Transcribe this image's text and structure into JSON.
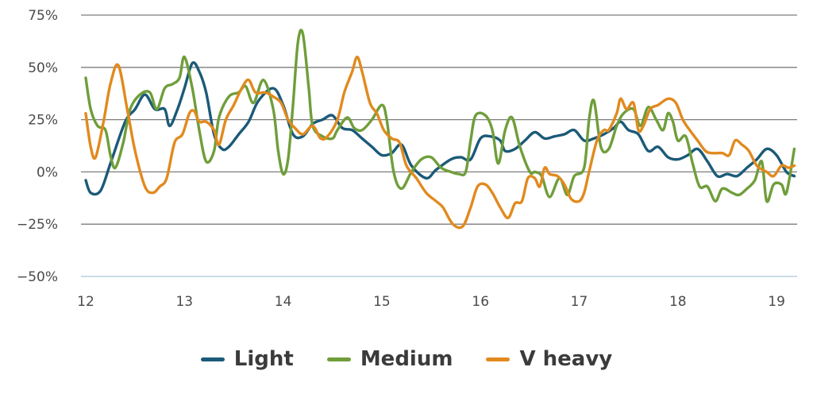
{
  "chart_data": {
    "type": "line",
    "title": "",
    "xlabel": "",
    "ylabel": "",
    "xlim": [
      12,
      19.2
    ],
    "ylim": [
      -50,
      75
    ],
    "x_ticks": [
      12,
      13,
      14,
      15,
      16,
      17,
      18,
      19
    ],
    "x_tick_labels": [
      "12",
      "13",
      "14",
      "15",
      "16",
      "17",
      "18",
      "19"
    ],
    "y_ticks": [
      -50,
      -25,
      0,
      25,
      50,
      75
    ],
    "y_tick_labels": [
      "−50%",
      "−25%",
      "0%",
      "25%",
      "50%",
      "75%"
    ],
    "grid": "horizontal",
    "legend_position": "bottom-center",
    "series": [
      {
        "name": "Light",
        "color": "#1b5a78",
        "points": [
          [
            12.0,
            -4
          ],
          [
            12.05,
            -10
          ],
          [
            12.15,
            -9
          ],
          [
            12.25,
            4
          ],
          [
            12.4,
            24
          ],
          [
            12.5,
            30
          ],
          [
            12.6,
            37
          ],
          [
            12.7,
            30
          ],
          [
            12.8,
            30
          ],
          [
            12.85,
            22
          ],
          [
            12.93,
            30
          ],
          [
            13.0,
            40
          ],
          [
            13.08,
            52
          ],
          [
            13.15,
            48
          ],
          [
            13.22,
            38
          ],
          [
            13.3,
            18
          ],
          [
            13.38,
            11
          ],
          [
            13.45,
            12
          ],
          [
            13.55,
            18
          ],
          [
            13.65,
            24
          ],
          [
            13.75,
            34
          ],
          [
            13.9,
            40
          ],
          [
            14.0,
            32
          ],
          [
            14.1,
            18
          ],
          [
            14.2,
            17
          ],
          [
            14.3,
            23
          ],
          [
            14.4,
            25
          ],
          [
            14.5,
            27
          ],
          [
            14.6,
            21
          ],
          [
            14.7,
            20
          ],
          [
            14.8,
            16
          ],
          [
            14.9,
            12
          ],
          [
            15.0,
            8
          ],
          [
            15.1,
            9
          ],
          [
            15.2,
            13
          ],
          [
            15.3,
            3
          ],
          [
            15.45,
            -3
          ],
          [
            15.55,
            1
          ],
          [
            15.7,
            6
          ],
          [
            15.8,
            7
          ],
          [
            15.9,
            6
          ],
          [
            16.0,
            16
          ],
          [
            16.1,
            17
          ],
          [
            16.2,
            15
          ],
          [
            16.25,
            10
          ],
          [
            16.35,
            11
          ],
          [
            16.45,
            15
          ],
          [
            16.55,
            19
          ],
          [
            16.65,
            16
          ],
          [
            16.75,
            17
          ],
          [
            16.85,
            18
          ],
          [
            16.95,
            20
          ],
          [
            17.05,
            15
          ],
          [
            17.15,
            16
          ],
          [
            17.25,
            18
          ],
          [
            17.35,
            21
          ],
          [
            17.42,
            24
          ],
          [
            17.5,
            20
          ],
          [
            17.6,
            18
          ],
          [
            17.7,
            10
          ],
          [
            17.8,
            12
          ],
          [
            17.9,
            7
          ],
          [
            18.0,
            6
          ],
          [
            18.1,
            8
          ],
          [
            18.2,
            11
          ],
          [
            18.3,
            5
          ],
          [
            18.4,
            -2
          ],
          [
            18.5,
            -1
          ],
          [
            18.6,
            -2
          ],
          [
            18.7,
            2
          ],
          [
            18.8,
            6
          ],
          [
            18.9,
            11
          ],
          [
            19.0,
            8
          ],
          [
            19.1,
            0
          ],
          [
            19.18,
            -2
          ]
        ]
      },
      {
        "name": "Medium",
        "color": "#6f9e3a",
        "points": [
          [
            12.0,
            45
          ],
          [
            12.05,
            30
          ],
          [
            12.12,
            22
          ],
          [
            12.2,
            20
          ],
          [
            12.25,
            8
          ],
          [
            12.3,
            2
          ],
          [
            12.38,
            14
          ],
          [
            12.45,
            30
          ],
          [
            12.55,
            37
          ],
          [
            12.65,
            38
          ],
          [
            12.72,
            30
          ],
          [
            12.8,
            40
          ],
          [
            12.88,
            42
          ],
          [
            12.95,
            45
          ],
          [
            13.0,
            55
          ],
          [
            13.08,
            40
          ],
          [
            13.15,
            20
          ],
          [
            13.22,
            5
          ],
          [
            13.3,
            10
          ],
          [
            13.35,
            26
          ],
          [
            13.45,
            36
          ],
          [
            13.55,
            38
          ],
          [
            13.62,
            41
          ],
          [
            13.7,
            33
          ],
          [
            13.8,
            44
          ],
          [
            13.9,
            30
          ],
          [
            13.95,
            10
          ],
          [
            14.0,
            -1
          ],
          [
            14.05,
            6
          ],
          [
            14.1,
            32
          ],
          [
            14.15,
            62
          ],
          [
            14.2,
            66
          ],
          [
            14.26,
            40
          ],
          [
            14.3,
            22
          ],
          [
            14.4,
            17
          ],
          [
            14.5,
            16
          ],
          [
            14.55,
            20
          ],
          [
            14.65,
            26
          ],
          [
            14.72,
            21
          ],
          [
            14.8,
            20
          ],
          [
            14.9,
            25
          ],
          [
            15.0,
            32
          ],
          [
            15.05,
            25
          ],
          [
            15.12,
            0
          ],
          [
            15.2,
            -8
          ],
          [
            15.3,
            0
          ],
          [
            15.4,
            6
          ],
          [
            15.5,
            7
          ],
          [
            15.6,
            2
          ],
          [
            15.7,
            0
          ],
          [
            15.78,
            -1
          ],
          [
            15.85,
            0
          ],
          [
            15.9,
            15
          ],
          [
            15.95,
            27
          ],
          [
            16.05,
            27
          ],
          [
            16.12,
            20
          ],
          [
            16.18,
            4
          ],
          [
            16.25,
            20
          ],
          [
            16.32,
            26
          ],
          [
            16.4,
            12
          ],
          [
            16.5,
            0
          ],
          [
            16.55,
            0
          ],
          [
            16.62,
            -2
          ],
          [
            16.7,
            -12
          ],
          [
            16.8,
            -3
          ],
          [
            16.88,
            -11
          ],
          [
            16.95,
            -2
          ],
          [
            17.05,
            2
          ],
          [
            17.1,
            25
          ],
          [
            17.15,
            34
          ],
          [
            17.22,
            12
          ],
          [
            17.3,
            11
          ],
          [
            17.38,
            22
          ],
          [
            17.45,
            28
          ],
          [
            17.55,
            30
          ],
          [
            17.62,
            22
          ],
          [
            17.7,
            31
          ],
          [
            17.78,
            25
          ],
          [
            17.85,
            20
          ],
          [
            17.9,
            28
          ],
          [
            17.95,
            24
          ],
          [
            18.0,
            15
          ],
          [
            18.08,
            17
          ],
          [
            18.15,
            4
          ],
          [
            18.22,
            -7
          ],
          [
            18.3,
            -7
          ],
          [
            18.38,
            -14
          ],
          [
            18.45,
            -8
          ],
          [
            18.55,
            -10
          ],
          [
            18.62,
            -11
          ],
          [
            18.7,
            -8
          ],
          [
            18.78,
            -4
          ],
          [
            18.85,
            5
          ],
          [
            18.9,
            -14
          ],
          [
            18.97,
            -6
          ],
          [
            19.05,
            -6
          ],
          [
            19.1,
            -10
          ],
          [
            19.18,
            11
          ]
        ]
      },
      {
        "name": "V heavy",
        "color": "#e18a1e",
        "points": [
          [
            12.0,
            28
          ],
          [
            12.05,
            12
          ],
          [
            12.1,
            7
          ],
          [
            12.18,
            24
          ],
          [
            12.25,
            42
          ],
          [
            12.33,
            51
          ],
          [
            12.42,
            30
          ],
          [
            12.5,
            10
          ],
          [
            12.6,
            -7
          ],
          [
            12.68,
            -10
          ],
          [
            12.75,
            -7
          ],
          [
            12.82,
            -3
          ],
          [
            12.9,
            14
          ],
          [
            12.98,
            18
          ],
          [
            13.05,
            28
          ],
          [
            13.1,
            29
          ],
          [
            13.15,
            24
          ],
          [
            13.22,
            24
          ],
          [
            13.3,
            20
          ],
          [
            13.35,
            13
          ],
          [
            13.42,
            25
          ],
          [
            13.5,
            32
          ],
          [
            13.58,
            40
          ],
          [
            13.65,
            44
          ],
          [
            13.72,
            38
          ],
          [
            13.82,
            38
          ],
          [
            13.9,
            36
          ],
          [
            13.98,
            33
          ],
          [
            14.05,
            25
          ],
          [
            14.12,
            21
          ],
          [
            14.2,
            18
          ],
          [
            14.3,
            22
          ],
          [
            14.38,
            16
          ],
          [
            14.45,
            17
          ],
          [
            14.55,
            25
          ],
          [
            14.62,
            38
          ],
          [
            14.7,
            48
          ],
          [
            14.75,
            55
          ],
          [
            14.8,
            48
          ],
          [
            14.88,
            33
          ],
          [
            14.95,
            28
          ],
          [
            15.02,
            20
          ],
          [
            15.1,
            16
          ],
          [
            15.18,
            14
          ],
          [
            15.25,
            3
          ],
          [
            15.35,
            -3
          ],
          [
            15.45,
            -10
          ],
          [
            15.55,
            -14
          ],
          [
            15.62,
            -17
          ],
          [
            15.72,
            -25
          ],
          [
            15.82,
            -26
          ],
          [
            15.9,
            -17
          ],
          [
            15.97,
            -7
          ],
          [
            16.05,
            -6
          ],
          [
            16.12,
            -10
          ],
          [
            16.2,
            -17
          ],
          [
            16.28,
            -22
          ],
          [
            16.35,
            -15
          ],
          [
            16.42,
            -14
          ],
          [
            16.48,
            -3
          ],
          [
            16.55,
            -3
          ],
          [
            16.6,
            -7
          ],
          [
            16.65,
            2
          ],
          [
            16.7,
            -1
          ],
          [
            16.78,
            -2
          ],
          [
            16.85,
            -6
          ],
          [
            16.92,
            -13
          ],
          [
            17.0,
            -14
          ],
          [
            17.05,
            -10
          ],
          [
            17.1,
            0
          ],
          [
            17.18,
            15
          ],
          [
            17.25,
            20
          ],
          [
            17.3,
            20
          ],
          [
            17.38,
            28
          ],
          [
            17.42,
            35
          ],
          [
            17.48,
            30
          ],
          [
            17.55,
            33
          ],
          [
            17.6,
            20
          ],
          [
            17.65,
            22
          ],
          [
            17.72,
            30
          ],
          [
            17.8,
            32
          ],
          [
            17.9,
            35
          ],
          [
            17.98,
            33
          ],
          [
            18.05,
            25
          ],
          [
            18.12,
            20
          ],
          [
            18.2,
            15
          ],
          [
            18.28,
            10
          ],
          [
            18.35,
            9
          ],
          [
            18.45,
            9
          ],
          [
            18.52,
            8
          ],
          [
            18.58,
            15
          ],
          [
            18.65,
            13
          ],
          [
            18.72,
            10
          ],
          [
            18.8,
            3
          ],
          [
            18.9,
            0
          ],
          [
            18.97,
            -2
          ],
          [
            19.05,
            3
          ],
          [
            19.12,
            2
          ],
          [
            19.18,
            3
          ]
        ]
      }
    ]
  }
}
